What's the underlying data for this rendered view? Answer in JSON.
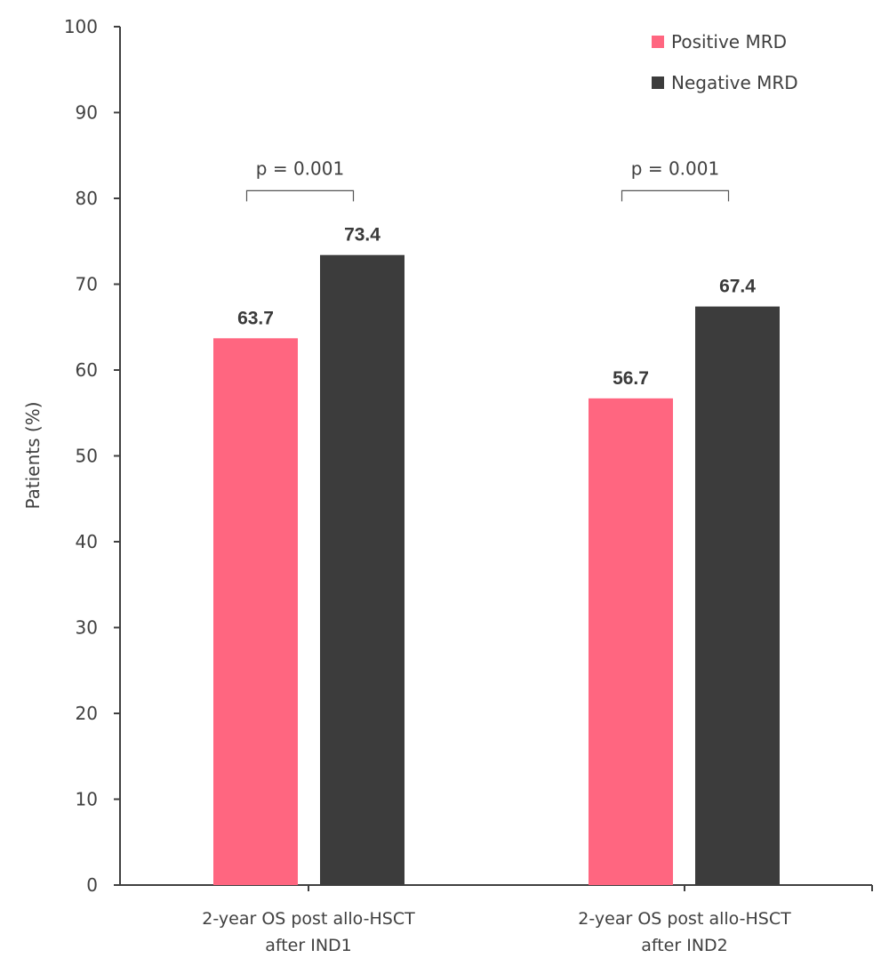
{
  "chart_data": {
    "type": "bar",
    "title": "",
    "xlabel": "",
    "ylabel": "Patients (%)",
    "ylim": [
      0,
      100
    ],
    "yticks": [
      0,
      10,
      20,
      30,
      40,
      50,
      60,
      70,
      80,
      90,
      100
    ],
    "grid": false,
    "legend_position": "top-right",
    "categories": [
      [
        "2-year OS post allo-HSCT",
        "after IND1"
      ],
      [
        "2-year OS post allo-HSCT",
        "after IND2"
      ]
    ],
    "series": [
      {
        "name": "Positive MRD",
        "color": "#ff6680",
        "values": [
          63.7,
          56.7
        ],
        "labels": [
          "63.7",
          "56.7"
        ]
      },
      {
        "name": "Negative MRD",
        "color": "#3c3c3c",
        "values": [
          73.4,
          67.4
        ],
        "labels": [
          "73.4",
          "67.4"
        ]
      }
    ],
    "annotations": [
      {
        "text": "p = 0.001",
        "category_index": 0,
        "between_series": [
          0,
          1
        ],
        "bracket_level": 81
      },
      {
        "text": "p = 0.001",
        "category_index": 1,
        "between_series": [
          0,
          1
        ],
        "bracket_level": 81
      }
    ]
  }
}
